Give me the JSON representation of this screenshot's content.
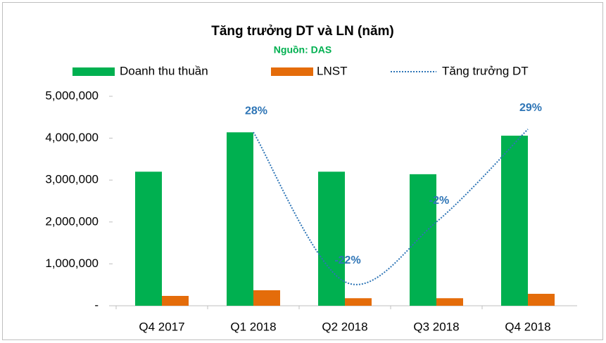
{
  "chart_data": {
    "type": "bar",
    "title": "Tăng trưởng DT và LN (năm)",
    "subtitle": "Nguồn: DAS",
    "categories": [
      "Q4 2017",
      "Q1 2018",
      "Q2 2018",
      "Q3 2018",
      "Q4 2018"
    ],
    "series": [
      {
        "name": "Doanh thu thuần",
        "type": "bar",
        "color": "#00b050",
        "values": [
          3200000,
          4140000,
          3200000,
          3140000,
          4060000
        ]
      },
      {
        "name": "LNST",
        "type": "bar",
        "color": "#e46c0a",
        "values": [
          235000,
          370000,
          180000,
          180000,
          285000
        ]
      },
      {
        "name": "Tăng trưởng DT",
        "type": "line",
        "axis": "y2",
        "color": "#2e75b6",
        "values": [
          null,
          28,
          -22,
          -2,
          29
        ],
        "value_labels": [
          null,
          "28%",
          "-22%",
          "-2%",
          "29%"
        ]
      }
    ],
    "ylim": [
      0,
      5000000
    ],
    "yticks": [
      {
        "value": 0,
        "label": "-"
      },
      {
        "value": 1000000,
        "label": "1,000,000"
      },
      {
        "value": 2000000,
        "label": "2,000,000"
      },
      {
        "value": 3000000,
        "label": "3,000,000"
      },
      {
        "value": 4000000,
        "label": "4,000,000"
      },
      {
        "value": 5000000,
        "label": "5,000,000"
      }
    ],
    "y2lim": [
      -30,
      40
    ],
    "legend": "top"
  }
}
